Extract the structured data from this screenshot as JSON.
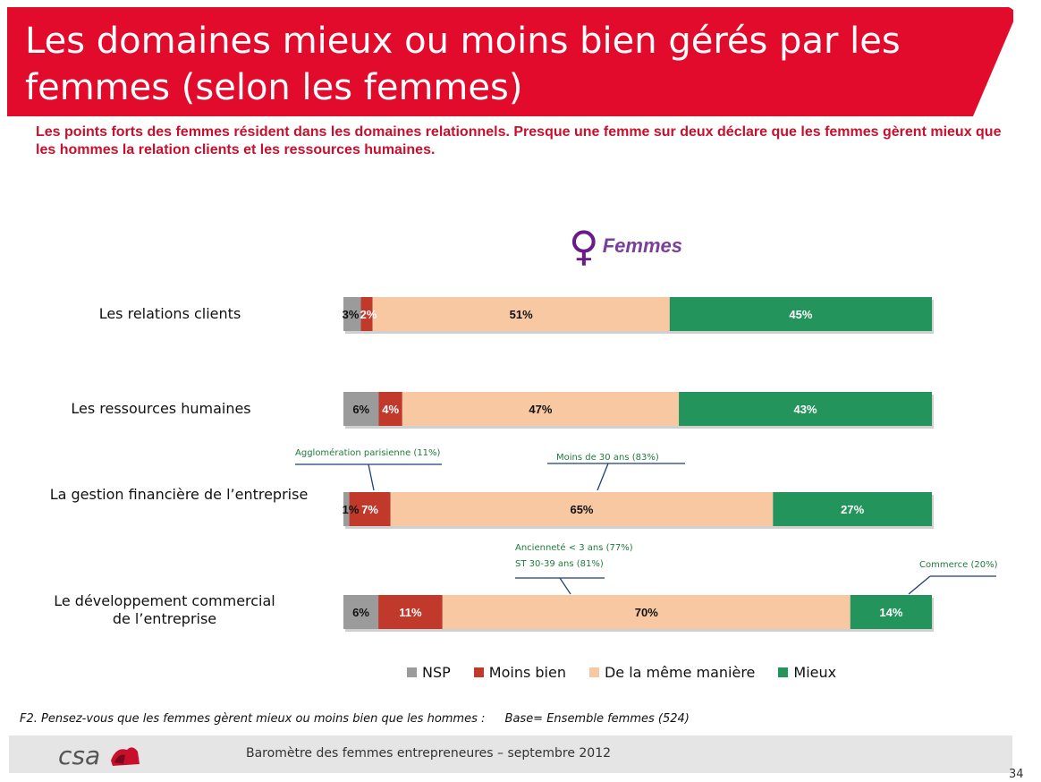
{
  "header": {
    "title_line1": "Les domaines mieux ou moins bien gérés par les",
    "title_line2": "femmes (selon les femmes)",
    "subtitle": "Les points forts des femmes résident dans les domaines relationnels. Presque une femme sur deux déclare que les femmes gèrent mieux que les hommes la relation clients et les ressources humaines.",
    "accent_color": "#e30b2c"
  },
  "panel": {
    "symbol": "♀",
    "label": "Femmes"
  },
  "chart_data": {
    "type": "bar",
    "orientation": "horizontal",
    "stacked": true,
    "percent_stacked": true,
    "title": "Femmes",
    "categories": [
      "Les relations clients",
      "Les ressources humaines",
      "La gestion financière de l’entreprise",
      "Le développement commercial de l’entreprise"
    ],
    "category_lines": [
      [
        "Les relations clients"
      ],
      [
        "Les ressources humaines"
      ],
      [
        "La gestion financière de l’entreprise"
      ],
      [
        "Le développement commercial",
        "de l’entreprise"
      ]
    ],
    "series": [
      {
        "name": "NSP",
        "color": "#9b9b9b",
        "values": [
          3,
          6,
          1,
          6
        ],
        "labels": [
          "3%",
          "6%",
          "1%",
          "6%"
        ],
        "label_color": "#111111"
      },
      {
        "name": "Moins bien",
        "color": "#c0392b",
        "values": [
          2,
          4,
          7,
          11
        ],
        "labels": [
          "2%",
          "4%",
          "7%",
          "11%"
        ],
        "label_color": "#ffffff"
      },
      {
        "name": "De la même manière",
        "color": "#f7c8a2",
        "values": [
          51,
          47,
          65,
          70
        ],
        "labels": [
          "51%",
          "47%",
          "65%",
          "70%"
        ],
        "label_color": "#111111"
      },
      {
        "name": "Mieux",
        "color": "#23955c",
        "values": [
          45,
          43,
          27,
          14
        ],
        "labels": [
          "45%",
          "43%",
          "27%",
          "14%"
        ],
        "label_color": "#ffffff"
      }
    ],
    "annotations": [
      {
        "bar": 2,
        "series": "Moins bien",
        "lines": [
          "Agglomération parisienne (11%)"
        ]
      },
      {
        "bar": 2,
        "series": "De la même manière",
        "lines": [
          "Moins de 30 ans (83%)"
        ]
      },
      {
        "bar": 3,
        "series": "De la même manière",
        "lines": [
          "Ancienneté < 3 ans (77%)",
          "ST 30-39 ans (81%)"
        ]
      },
      {
        "bar": 3,
        "series": "Mieux",
        "lines": [
          "Commerce (20%)"
        ]
      }
    ],
    "annotation_color": "#1e7b3c",
    "legend_position": "bottom",
    "grid": false
  },
  "footnote": {
    "question": "F2. Pensez-vous que les femmes gèrent mieux ou moins bien que les hommes :",
    "base": "Base= Ensemble femmes (524)"
  },
  "footer": {
    "logo_text": "csa",
    "text": "Baromètre des femmes entrepreneures –  septembre 2012",
    "page_number": "34"
  }
}
